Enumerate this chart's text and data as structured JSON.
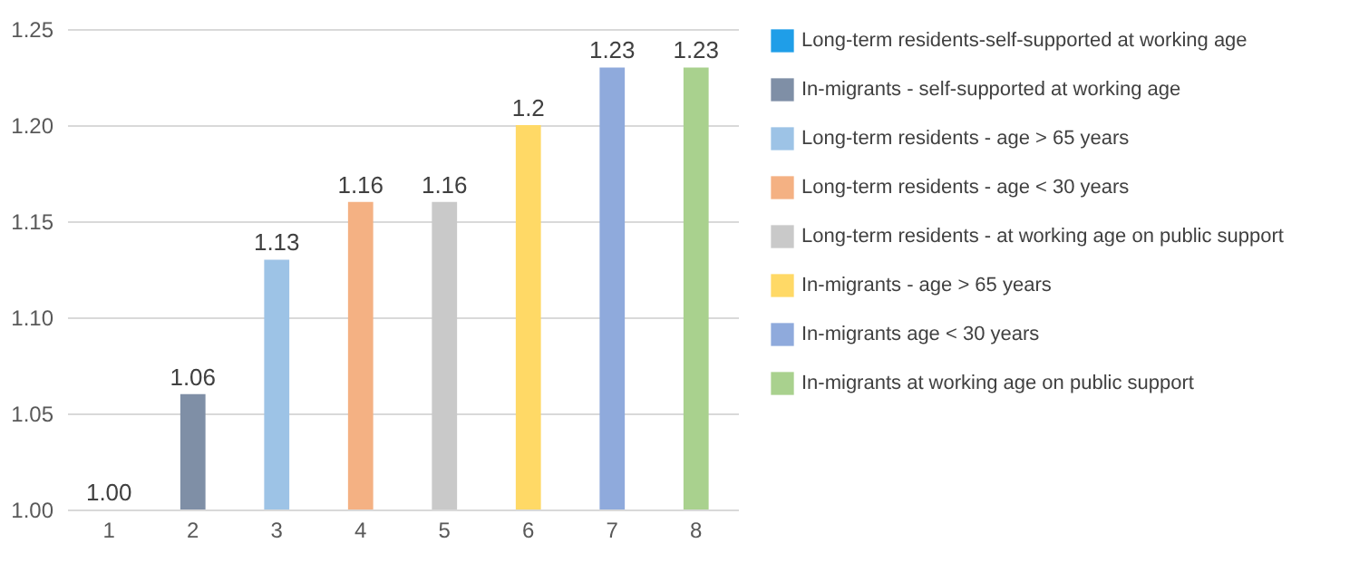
{
  "chart_data": {
    "type": "bar",
    "categories": [
      "1",
      "2",
      "3",
      "4",
      "5",
      "6",
      "7",
      "8"
    ],
    "series": [
      {
        "name": "Long-term residents-self-supported at working age",
        "color": "#1f9ee8",
        "values": [
          1.0,
          null,
          null,
          null,
          null,
          null,
          null,
          null
        ],
        "value_labels": [
          "1.00",
          null,
          null,
          null,
          null,
          null,
          null,
          null
        ]
      },
      {
        "name": "In-migrants - self-supported at working age",
        "color": "#7f8fa6",
        "values": [
          null,
          1.06,
          null,
          null,
          null,
          null,
          null,
          null
        ],
        "value_labels": [
          null,
          "1.06",
          null,
          null,
          null,
          null,
          null,
          null
        ]
      },
      {
        "name": "Long-term residents - age > 65 years",
        "color": "#9dc3e6",
        "values": [
          null,
          null,
          1.13,
          null,
          null,
          null,
          null,
          null
        ],
        "value_labels": [
          null,
          null,
          "1.13",
          null,
          null,
          null,
          null,
          null
        ]
      },
      {
        "name": "Long-term residents - age < 30 years",
        "color": "#f4b183",
        "values": [
          null,
          null,
          null,
          1.16,
          null,
          null,
          null,
          null
        ],
        "value_labels": [
          null,
          null,
          null,
          "1.16",
          null,
          null,
          null,
          null
        ]
      },
      {
        "name": "Long-term residents - at working age on public support",
        "color": "#c9c9c9",
        "values": [
          null,
          null,
          null,
          null,
          1.16,
          null,
          null,
          null
        ],
        "value_labels": [
          null,
          null,
          null,
          null,
          "1.16",
          null,
          null,
          null
        ]
      },
      {
        "name": "In-migrants - age > 65 years",
        "color": "#ffd966",
        "values": [
          null,
          null,
          null,
          null,
          null,
          1.2,
          null,
          null
        ],
        "value_labels": [
          null,
          null,
          null,
          null,
          null,
          "1.2",
          null,
          null
        ]
      },
      {
        "name": "In-migrants age < 30 years",
        "color": "#8faadc",
        "values": [
          null,
          null,
          null,
          null,
          null,
          null,
          1.23,
          null
        ],
        "value_labels": [
          null,
          null,
          null,
          null,
          null,
          null,
          "1.23",
          null
        ]
      },
      {
        "name": "In-migrants at working age on public support",
        "color": "#a9d18e",
        "values": [
          null,
          null,
          null,
          null,
          null,
          null,
          null,
          1.23
        ],
        "value_labels": [
          null,
          null,
          null,
          null,
          null,
          null,
          null,
          "1.23"
        ]
      }
    ],
    "ylim": [
      1.0,
      1.25
    ],
    "yticks": [
      {
        "value": 1.0,
        "label": "1.00"
      },
      {
        "value": 1.05,
        "label": "1.05"
      },
      {
        "value": 1.1,
        "label": "1.10"
      },
      {
        "value": 1.15,
        "label": "1.15"
      },
      {
        "value": 1.2,
        "label": "1.20"
      },
      {
        "value": 1.25,
        "label": "1.25"
      }
    ],
    "grid": "y",
    "legend": "right"
  }
}
